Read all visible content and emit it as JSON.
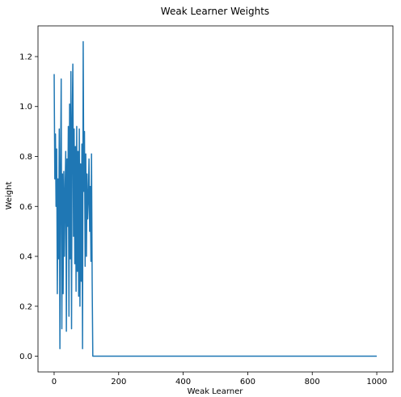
{
  "chart_data": {
    "type": "line",
    "title": "Weak Learner Weights",
    "xlabel": "Weak Learner",
    "ylabel": "Weight",
    "xlim": [
      -50,
      1050
    ],
    "ylim": [
      -0.063,
      1.323
    ],
    "xticks": [
      0,
      200,
      400,
      600,
      800,
      1000
    ],
    "yticks": [
      0.0,
      0.2,
      0.4,
      0.6,
      0.8,
      1.0,
      1.2
    ],
    "xtick_labels": [
      "0",
      "200",
      "400",
      "600",
      "800",
      "1000"
    ],
    "ytick_labels": [
      "0.0",
      "0.2",
      "0.4",
      "0.6",
      "0.8",
      "1.0",
      "1.2"
    ],
    "grid": false,
    "legend": "none",
    "line_color": "#1f77b4",
    "series": [
      {
        "x": [
          0,
          2,
          4,
          6,
          8,
          10,
          12,
          14,
          16,
          18,
          20,
          22,
          24,
          26,
          28,
          30,
          32,
          34,
          36,
          38,
          40,
          42,
          44,
          46,
          48,
          50,
          52,
          54,
          56,
          58,
          60,
          62,
          64,
          66,
          68,
          70,
          72,
          74,
          76,
          78,
          80,
          82,
          84,
          86,
          88,
          90,
          92,
          94,
          96,
          98,
          100,
          102,
          104,
          106,
          108,
          110,
          112,
          114,
          116,
          118,
          120,
          1000
        ],
        "y": [
          1.13,
          0.71,
          0.89,
          0.6,
          0.83,
          0.25,
          0.71,
          0.39,
          0.91,
          0.03,
          0.75,
          1.11,
          0.11,
          0.73,
          0.25,
          0.74,
          0.4,
          0.66,
          0.82,
          0.1,
          0.79,
          0.52,
          0.92,
          0.16,
          1.01,
          0.39,
          1.14,
          0.11,
          0.94,
          1.17,
          0.48,
          0.91,
          0.37,
          0.84,
          0.26,
          0.92,
          0.34,
          0.82,
          0.24,
          0.91,
          0.2,
          0.77,
          0.3,
          0.85,
          0.03,
          1.26,
          0.66,
          0.9,
          0.36,
          0.81,
          0.4,
          0.73,
          0.55,
          0.63,
          0.79,
          0.5,
          0.68,
          0.38,
          0.81,
          0.3,
          0.0,
          0.0
        ]
      }
    ]
  }
}
